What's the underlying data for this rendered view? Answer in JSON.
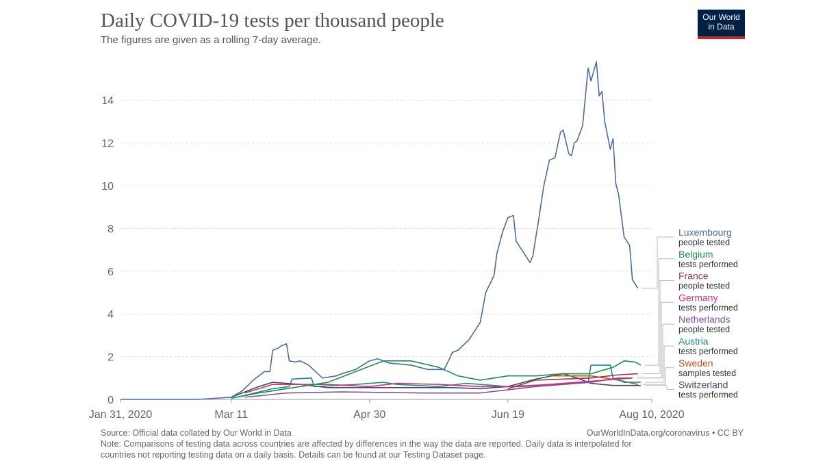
{
  "chart_data": {
    "type": "line",
    "title": "Daily COVID-19 tests per thousand people",
    "subtitle": "The figures are given as a rolling 7-day average.",
    "x_ticks": [
      {
        "day": 0,
        "label": "Jan 31, 2020"
      },
      {
        "day": 40,
        "label": "Mar 11"
      },
      {
        "day": 90,
        "label": "Apr 30"
      },
      {
        "day": 140,
        "label": "Jun 19"
      },
      {
        "day": 192,
        "label": "Aug 10, 2020"
      }
    ],
    "y_ticks": [
      0,
      2,
      4,
      6,
      8,
      10,
      12,
      14
    ],
    "ylim": [
      0,
      16
    ],
    "xlim_days": [
      0,
      192
    ],
    "grid": true,
    "legend_placement": "right",
    "series": [
      {
        "name": "Luxembourg",
        "unit": "people tested",
        "color": "#4c6a9c",
        "points": [
          [
            0,
            0
          ],
          [
            28,
            0
          ],
          [
            40,
            0.1
          ],
          [
            44,
            0.4
          ],
          [
            48,
            0.9
          ],
          [
            52,
            1.3
          ],
          [
            54,
            1.3
          ],
          [
            55,
            2.3
          ],
          [
            57,
            2.4
          ],
          [
            58,
            2.5
          ],
          [
            60,
            2.6
          ],
          [
            61,
            1.8
          ],
          [
            63,
            1.75
          ],
          [
            65,
            1.8
          ],
          [
            68,
            1.6
          ],
          [
            73,
            1.0
          ],
          [
            78,
            1.1
          ],
          [
            80,
            1.2
          ],
          [
            85,
            1.4
          ],
          [
            90,
            1.8
          ],
          [
            93,
            1.9
          ],
          [
            97,
            1.7
          ],
          [
            105,
            1.6
          ],
          [
            111,
            1.4
          ],
          [
            117,
            1.4
          ],
          [
            120,
            2.2
          ],
          [
            122,
            2.3
          ],
          [
            126,
            2.8
          ],
          [
            130,
            3.6
          ],
          [
            132,
            5.0
          ],
          [
            135,
            5.8
          ],
          [
            136,
            6.8
          ],
          [
            138,
            7.8
          ],
          [
            140,
            8.5
          ],
          [
            142,
            8.6
          ],
          [
            143,
            7.4
          ],
          [
            146,
            6.8
          ],
          [
            148,
            6.4
          ],
          [
            149,
            6.7
          ],
          [
            151,
            8.3
          ],
          [
            153,
            10.0
          ],
          [
            155,
            11.2
          ],
          [
            157,
            11.3
          ],
          [
            159,
            12.5
          ],
          [
            160,
            12.6
          ],
          [
            162,
            11.5
          ],
          [
            163,
            11.4
          ],
          [
            164,
            12.0
          ],
          [
            165,
            12.1
          ],
          [
            167,
            12.8
          ],
          [
            169,
            15.5
          ],
          [
            170,
            14.9
          ],
          [
            172,
            15.8
          ],
          [
            173,
            14.2
          ],
          [
            174,
            14.4
          ],
          [
            175,
            13.0
          ],
          [
            177,
            11.7
          ],
          [
            178,
            12.2
          ],
          [
            179,
            10.1
          ],
          [
            180,
            9.6
          ],
          [
            182,
            7.6
          ],
          [
            184,
            7.2
          ],
          [
            185,
            5.6
          ],
          [
            187,
            5.2
          ]
        ]
      },
      {
        "name": "Belgium",
        "unit": "tests performed",
        "color": "#18924a",
        "points": [
          [
            40,
            0.05
          ],
          [
            50,
            0.3
          ],
          [
            60,
            0.5
          ],
          [
            75,
            0.8
          ],
          [
            85,
            1.3
          ],
          [
            95,
            1.8
          ],
          [
            105,
            1.8
          ],
          [
            115,
            1.5
          ],
          [
            122,
            1.1
          ],
          [
            130,
            0.9
          ],
          [
            140,
            1.1
          ],
          [
            150,
            1.1
          ],
          [
            160,
            1.2
          ],
          [
            170,
            1.2
          ],
          [
            178,
            1.5
          ],
          [
            182,
            1.8
          ],
          [
            186,
            1.75
          ],
          [
            188,
            1.6
          ]
        ]
      },
      {
        "name": "France",
        "unit": "people tested",
        "color": "#9a3a3a",
        "points": [
          [
            140,
            0.5
          ],
          [
            150,
            0.9
          ],
          [
            170,
            1.0
          ],
          [
            180,
            1.15
          ],
          [
            187,
            1.2
          ]
        ]
      },
      {
        "name": "Germany",
        "unit": "tests performed",
        "color": "#dd2c76",
        "points": [
          [
            45,
            0.3
          ],
          [
            55,
            0.7
          ],
          [
            75,
            0.7
          ],
          [
            90,
            0.6
          ],
          [
            100,
            0.75
          ],
          [
            115,
            0.7
          ],
          [
            130,
            0.6
          ],
          [
            145,
            0.6
          ],
          [
            160,
            0.75
          ],
          [
            175,
            0.9
          ],
          [
            185,
            1.0
          ]
        ]
      },
      {
        "name": "Netherlands",
        "unit": "people tested",
        "color": "#7d4fa3",
        "points": [
          [
            45,
            0.1
          ],
          [
            60,
            0.3
          ],
          [
            80,
            0.35
          ],
          [
            110,
            0.3
          ],
          [
            130,
            0.3
          ],
          [
            150,
            0.6
          ],
          [
            170,
            0.8
          ],
          [
            180,
            1.0
          ],
          [
            185,
            1.0
          ]
        ]
      },
      {
        "name": "Austria",
        "unit": "tests performed",
        "color": "#1a8d85",
        "points": [
          [
            42,
            0.1
          ],
          [
            55,
            0.5
          ],
          [
            61,
            0.6
          ],
          [
            62,
            0.95
          ],
          [
            69,
            1.0
          ],
          [
            70,
            0.6
          ],
          [
            85,
            0.7
          ],
          [
            95,
            0.8
          ],
          [
            100,
            0.7
          ],
          [
            115,
            0.6
          ],
          [
            125,
            0.75
          ],
          [
            140,
            0.6
          ],
          [
            155,
            0.7
          ],
          [
            169,
            0.8
          ],
          [
            170,
            1.6
          ],
          [
            177,
            1.6
          ],
          [
            178,
            1.0
          ],
          [
            182,
            0.8
          ],
          [
            188,
            0.8
          ]
        ]
      },
      {
        "name": "Sweden",
        "unit": "samples tested",
        "color": "#c8501e",
        "points": [
          [
            155,
            1.1
          ],
          [
            170,
            1.1
          ],
          [
            180,
            0.9
          ],
          [
            187,
            0.7
          ]
        ]
      },
      {
        "name": "Switzerland",
        "unit": "tests performed",
        "color": "#3d4a63",
        "points": [
          [
            40,
            0.1
          ],
          [
            50,
            0.6
          ],
          [
            55,
            0.8
          ],
          [
            65,
            0.7
          ],
          [
            75,
            0.55
          ],
          [
            90,
            0.55
          ],
          [
            105,
            0.55
          ],
          [
            120,
            0.55
          ],
          [
            130,
            0.5
          ],
          [
            140,
            0.6
          ],
          [
            150,
            0.95
          ],
          [
            160,
            1.2
          ],
          [
            165,
            1.0
          ],
          [
            170,
            0.75
          ],
          [
            178,
            0.65
          ],
          [
            188,
            0.65
          ]
        ]
      }
    ]
  },
  "logo": {
    "line1": "Our World",
    "line2": "in Data"
  },
  "footer": {
    "source": "Source: Official data collated by Our World in Data",
    "license": "OurWorldInData.org/coronavirus • CC BY",
    "note1": "Note: Comparisons of testing data across countries are affected by differences in the way the data are reported. Daily data is interpolated for",
    "note2": "countries not reporting testing data on a daily basis. Details can be found at our Testing Dataset page."
  }
}
